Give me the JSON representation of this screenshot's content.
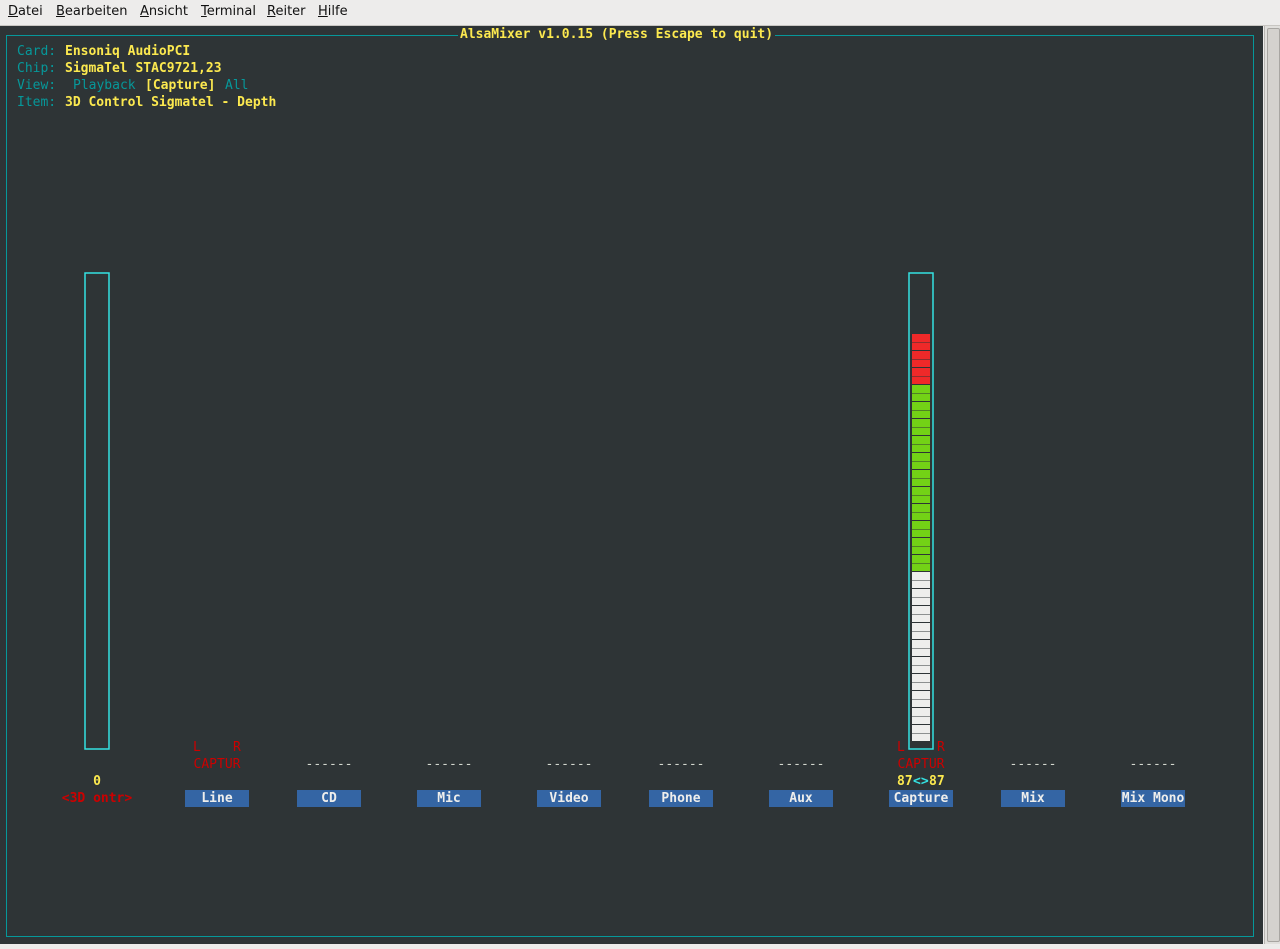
{
  "menu": [
    "Datei",
    "Bearbeiten",
    "Ansicht",
    "Terminal",
    "Reiter",
    "Hilfe"
  ],
  "title": "AlsaMixer v1.0.15 (Press Escape to quit)",
  "info": {
    "card_label": "Card:",
    "card": "Ensoniq AudioPCI",
    "chip_label": "Chip:",
    "chip": "SigmaTel STAC9721,23",
    "view_label": "View:",
    "views": [
      "Playback",
      "[Capture]",
      "All"
    ],
    "item_label": "Item:",
    "item": "3D Control Sigmatel - Depth"
  },
  "controls": [
    {
      "name": "<3D ontr>",
      "value": 0
    },
    {
      "name": "Line",
      "channels": [
        "L",
        "R"
      ],
      "status": "CAPTUR"
    },
    {
      "name": "CD",
      "status": "------"
    },
    {
      "name": "Mic",
      "status": "------"
    },
    {
      "name": "Video",
      "status": "------"
    },
    {
      "name": "Phone",
      "status": "------"
    },
    {
      "name": "Aux",
      "status": "------"
    },
    {
      "name": "Capture",
      "channels": [
        "L",
        "R"
      ],
      "status": "CAPTUR",
      "left": 87,
      "separator": "<>",
      "right": 87
    },
    {
      "name": "Mix",
      "status": "------"
    },
    {
      "name": "Mix Mono",
      "status": "------"
    }
  ]
}
